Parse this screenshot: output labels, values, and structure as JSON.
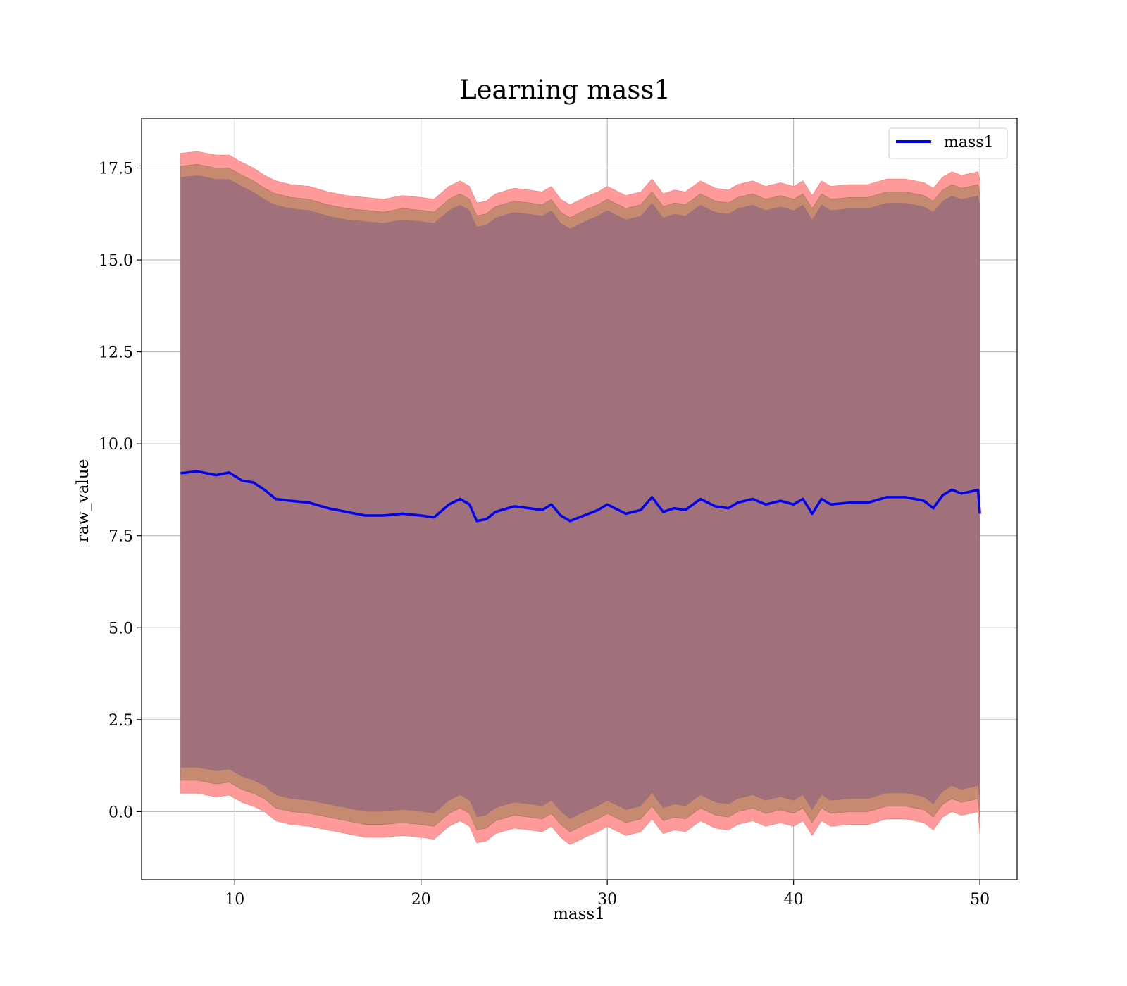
{
  "chart_data": {
    "type": "line",
    "title": "Learning mass1",
    "xlabel": "mass1",
    "ylabel": "raw_value",
    "xlim": [
      5,
      52
    ],
    "ylim": [
      -1.85,
      18.85
    ],
    "xticks": [
      10,
      20,
      30,
      40,
      50
    ],
    "yticks": [
      0.0,
      2.5,
      5.0,
      7.5,
      10.0,
      12.5,
      15.0,
      17.5
    ],
    "grid": true,
    "legend": {
      "location": "upper right",
      "entries": [
        "mass1"
      ]
    },
    "colors": {
      "line": "#0000ee",
      "band_outer": "#ff9a9a",
      "band_mid": "#c58a70",
      "band_inner": "#a0717a"
    },
    "series": [
      {
        "name": "mass1",
        "x": [
          7.1,
          8.0,
          9.0,
          9.7,
          10.4,
          11.0,
          11.6,
          12.2,
          13.0,
          14.0,
          15.0,
          16.0,
          17.0,
          18.0,
          19.0,
          20.0,
          20.7,
          21.5,
          22.1,
          22.6,
          23.0,
          23.5,
          24.0,
          25.0,
          25.8,
          26.5,
          27.0,
          27.5,
          28.0,
          29.0,
          29.5,
          30.0,
          31.0,
          31.8,
          32.4,
          33.0,
          33.6,
          34.2,
          35.0,
          35.8,
          36.5,
          37.0,
          37.8,
          38.5,
          39.3,
          40.0,
          40.5,
          41.0,
          41.5,
          42.0,
          43.0,
          44.0,
          45.0,
          46.0,
          47.0,
          47.5,
          48.0,
          48.5,
          49.0,
          49.5,
          49.9,
          50.0
        ],
        "values": [
          9.2,
          9.25,
          9.15,
          9.22,
          9.0,
          8.95,
          8.75,
          8.5,
          8.45,
          8.4,
          8.25,
          8.15,
          8.05,
          8.05,
          8.1,
          8.05,
          8.0,
          8.35,
          8.5,
          8.35,
          7.9,
          7.95,
          8.15,
          8.3,
          8.25,
          8.2,
          8.35,
          8.05,
          7.9,
          8.1,
          8.2,
          8.35,
          8.1,
          8.2,
          8.55,
          8.15,
          8.25,
          8.2,
          8.5,
          8.3,
          8.25,
          8.4,
          8.5,
          8.35,
          8.45,
          8.35,
          8.5,
          8.1,
          8.5,
          8.35,
          8.4,
          8.4,
          8.55,
          8.55,
          8.45,
          8.25,
          8.6,
          8.75,
          8.65,
          8.7,
          8.75,
          8.1
        ],
        "band_inner_upper": [
          17.25,
          17.3,
          17.2,
          17.2,
          17.0,
          16.85,
          16.65,
          16.5,
          16.4,
          16.35,
          16.2,
          16.1,
          16.05,
          16.0,
          16.1,
          16.05,
          16.0,
          16.35,
          16.5,
          16.35,
          15.9,
          15.95,
          16.15,
          16.3,
          16.25,
          16.2,
          16.35,
          16.0,
          15.85,
          16.1,
          16.2,
          16.35,
          16.1,
          16.2,
          16.55,
          16.15,
          16.25,
          16.2,
          16.5,
          16.3,
          16.25,
          16.4,
          16.5,
          16.35,
          16.45,
          16.35,
          16.5,
          16.1,
          16.5,
          16.35,
          16.4,
          16.4,
          16.55,
          16.55,
          16.45,
          16.3,
          16.6,
          16.75,
          16.65,
          16.7,
          16.75,
          16.5
        ],
        "band_inner_lower": [
          1.2,
          1.2,
          1.1,
          1.15,
          0.95,
          0.85,
          0.7,
          0.45,
          0.35,
          0.3,
          0.2,
          0.1,
          0.0,
          0.0,
          0.05,
          0.0,
          -0.05,
          0.3,
          0.45,
          0.3,
          -0.15,
          -0.1,
          0.1,
          0.25,
          0.2,
          0.15,
          0.3,
          0.0,
          -0.2,
          0.05,
          0.15,
          0.3,
          0.05,
          0.15,
          0.5,
          0.1,
          0.2,
          0.15,
          0.45,
          0.25,
          0.2,
          0.35,
          0.45,
          0.3,
          0.4,
          0.3,
          0.45,
          0.05,
          0.45,
          0.3,
          0.35,
          0.35,
          0.5,
          0.5,
          0.4,
          0.2,
          0.55,
          0.7,
          0.6,
          0.65,
          0.7,
          0.2
        ],
        "band_mid_upper": [
          17.55,
          17.6,
          17.5,
          17.5,
          17.3,
          17.15,
          16.95,
          16.8,
          16.7,
          16.65,
          16.5,
          16.4,
          16.35,
          16.3,
          16.4,
          16.35,
          16.3,
          16.65,
          16.8,
          16.65,
          16.2,
          16.25,
          16.45,
          16.6,
          16.55,
          16.5,
          16.65,
          16.3,
          16.15,
          16.4,
          16.5,
          16.65,
          16.4,
          16.5,
          16.85,
          16.45,
          16.55,
          16.5,
          16.8,
          16.6,
          16.55,
          16.7,
          16.8,
          16.65,
          16.75,
          16.65,
          16.8,
          16.4,
          16.8,
          16.65,
          16.7,
          16.7,
          16.85,
          16.85,
          16.75,
          16.6,
          16.9,
          17.05,
          16.95,
          17.0,
          17.05,
          16.8
        ],
        "band_mid_lower": [
          0.85,
          0.85,
          0.75,
          0.8,
          0.6,
          0.5,
          0.35,
          0.1,
          0.0,
          -0.05,
          -0.15,
          -0.25,
          -0.35,
          -0.35,
          -0.3,
          -0.35,
          -0.4,
          -0.05,
          0.1,
          -0.05,
          -0.5,
          -0.45,
          -0.25,
          -0.1,
          -0.15,
          -0.2,
          -0.05,
          -0.35,
          -0.55,
          -0.3,
          -0.2,
          -0.05,
          -0.3,
          -0.2,
          0.15,
          -0.25,
          -0.15,
          -0.2,
          0.1,
          -0.1,
          -0.15,
          0.0,
          0.1,
          -0.05,
          0.05,
          -0.05,
          0.1,
          -0.3,
          0.1,
          -0.05,
          0.0,
          0.0,
          0.15,
          0.15,
          0.05,
          -0.15,
          0.2,
          0.35,
          0.25,
          0.3,
          0.35,
          -0.15
        ],
        "band_outer_upper": [
          17.9,
          17.95,
          17.85,
          17.85,
          17.65,
          17.5,
          17.3,
          17.15,
          17.05,
          17.0,
          16.85,
          16.75,
          16.7,
          16.65,
          16.75,
          16.7,
          16.65,
          17.0,
          17.15,
          17.0,
          16.55,
          16.6,
          16.8,
          16.95,
          16.9,
          16.85,
          17.0,
          16.65,
          16.5,
          16.75,
          16.85,
          17.0,
          16.75,
          16.85,
          17.2,
          16.8,
          16.9,
          16.85,
          17.15,
          16.95,
          16.9,
          17.05,
          17.15,
          17.0,
          17.1,
          17.0,
          17.15,
          16.75,
          17.15,
          17.0,
          17.05,
          17.05,
          17.2,
          17.2,
          17.1,
          16.95,
          17.25,
          17.4,
          17.3,
          17.35,
          17.4,
          17.15
        ],
        "band_outer_lower": [
          0.5,
          0.5,
          0.4,
          0.45,
          0.25,
          0.15,
          0.0,
          -0.25,
          -0.35,
          -0.4,
          -0.5,
          -0.6,
          -0.7,
          -0.7,
          -0.65,
          -0.7,
          -0.75,
          -0.4,
          -0.25,
          -0.4,
          -0.85,
          -0.8,
          -0.6,
          -0.45,
          -0.5,
          -0.55,
          -0.4,
          -0.7,
          -0.9,
          -0.65,
          -0.55,
          -0.4,
          -0.65,
          -0.55,
          -0.2,
          -0.6,
          -0.5,
          -0.55,
          -0.25,
          -0.45,
          -0.5,
          -0.35,
          -0.25,
          -0.4,
          -0.3,
          -0.4,
          -0.25,
          -0.65,
          -0.25,
          -0.4,
          -0.35,
          -0.35,
          -0.2,
          -0.2,
          -0.3,
          -0.5,
          -0.15,
          0.0,
          -0.1,
          -0.05,
          0.0,
          -0.6
        ]
      }
    ]
  }
}
